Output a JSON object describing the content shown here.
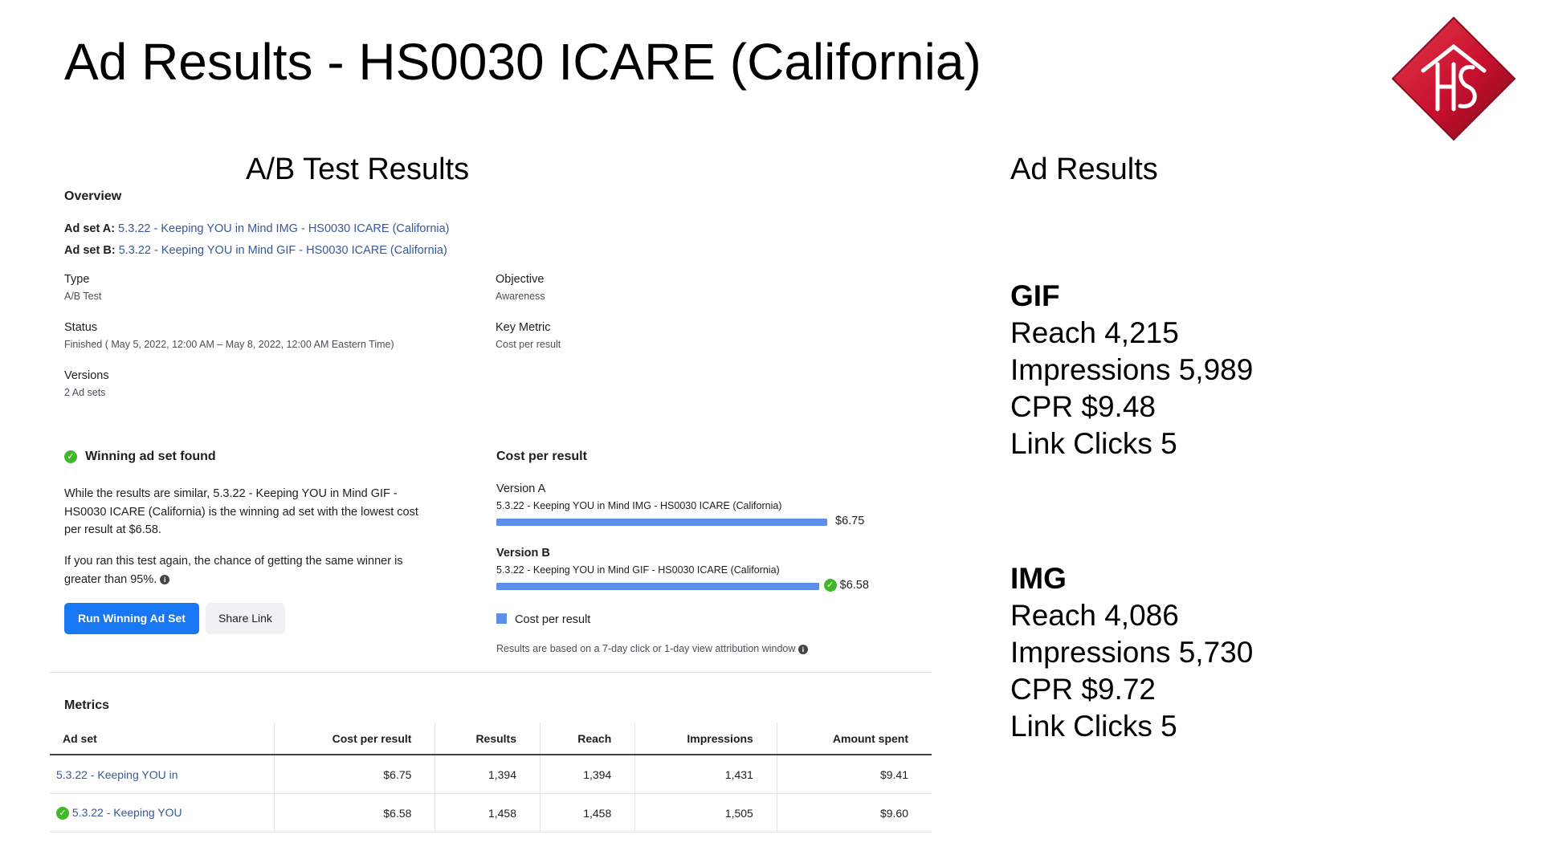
{
  "slide": {
    "title": "Ad Results - HS0030 ICARE (California)"
  },
  "left_section": {
    "heading": "A/B Test Results"
  },
  "right_section": {
    "heading": "Ad Results"
  },
  "overview": {
    "heading": "Overview",
    "ad_set_a_label": "Ad set A:",
    "ad_set_a": "5.3.22 - Keeping YOU in Mind IMG - HS0030 ICARE (California)",
    "ad_set_b_label": "Ad set B:",
    "ad_set_b": "5.3.22 - Keeping YOU in Mind GIF - HS0030 ICARE (California)",
    "type_label": "Type",
    "type_value": "A/B Test",
    "objective_label": "Objective",
    "objective_value": "Awareness",
    "status_label": "Status",
    "status_value": "Finished ( May 5, 2022, 12:00 AM – May 8, 2022, 12:00 AM Eastern Time)",
    "key_metric_label": "Key Metric",
    "key_metric_value": "Cost per result",
    "versions_label": "Versions",
    "versions_value": "2 Ad sets"
  },
  "winner": {
    "heading": "Winning ad set found",
    "para1_line1": "While the results are similar, 5.3.22 - Keeping YOU in Mind GIF -",
    "para1_line2": "HS0030 ICARE (California) is the winning ad set with the lowest cost",
    "para1_line3": "per result at $6.58.",
    "para2_line1": "If you ran this test again, the chance of getting the same winner is",
    "para2_line2": "greater than 95%.",
    "run_button": "Run Winning Ad Set",
    "share_button": "Share Link"
  },
  "cost_chart": {
    "heading": "Cost per result",
    "version_a_label": "Version A",
    "version_a_name": "5.3.22 - Keeping YOU in Mind IMG - HS0030 ICARE (California)",
    "version_a_value": "$6.75",
    "version_b_label": "Version B",
    "version_b_name": "5.3.22 - Keeping YOU in Mind GIF - HS0030 ICARE (California)",
    "version_b_value": "$6.58",
    "legend": "Cost per result",
    "footnote": "Results are based on a 7-day click or 1-day view attribution window",
    "bar_color": "#5b8fe9",
    "bar_values": [
      6.75,
      6.58
    ]
  },
  "metrics": {
    "heading": "Metrics",
    "columns": [
      "Ad set",
      "Cost per result",
      "Results",
      "Reach",
      "Impressions",
      "Amount spent"
    ],
    "rows": [
      {
        "ad_set": "5.3.22 - Keeping YOU in",
        "winner": false,
        "cost": "$6.75",
        "results": "1,394",
        "reach": "1,394",
        "impressions": "1,431",
        "spent": "$9.41"
      },
      {
        "ad_set": "5.3.22 - Keeping YOU",
        "winner": true,
        "cost": "$6.58",
        "results": "1,458",
        "reach": "1,458",
        "impressions": "1,505",
        "spent": "$9.60"
      }
    ]
  },
  "gif_results": {
    "heading": "GIF",
    "reach": "Reach 4,215",
    "impressions": "Impressions 5,989",
    "cpr": "CPR $9.48",
    "link_clicks": "Link Clicks 5"
  },
  "img_results": {
    "heading": "IMG",
    "reach": "Reach 4,086",
    "impressions": "Impressions 5,730",
    "cpr": "CPR $9.72",
    "link_clicks": "Link Clicks 5"
  },
  "colors": {
    "link": "#385898",
    "primary_button": "#1877f2",
    "logo_red": "#c8102e",
    "check_green": "#42b72a"
  }
}
